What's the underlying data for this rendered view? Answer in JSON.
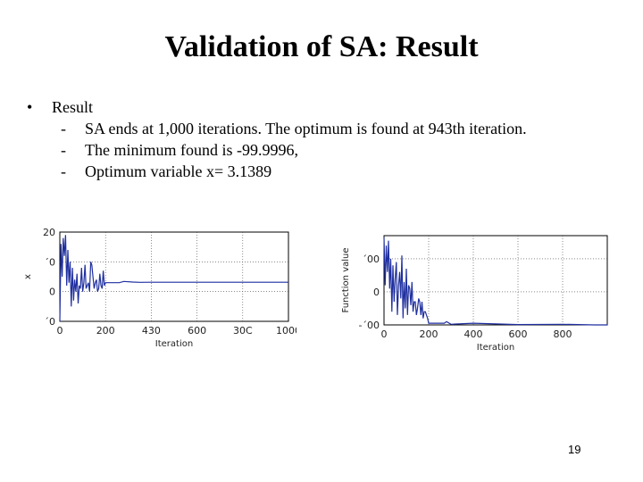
{
  "slide": {
    "title": "Validation of SA: Result",
    "bullet": "Result",
    "subitems": [
      "SA ends at 1,000 iterations. The optimum is found at 943th iteration.",
      "The minimum found is -99.9996,",
      "Optimum variable x= 3.1389"
    ],
    "page_number": "19"
  },
  "chart_data": [
    {
      "type": "line",
      "title": "",
      "xlabel": "Iteration",
      "ylabel": "x",
      "xlim": [
        0,
        1000
      ],
      "ylim": [
        -10,
        20
      ],
      "xticks": [
        "0",
        "200",
        "400",
        "600",
        "800",
        "1000"
      ],
      "yticks": [
        "20",
        "10",
        "0",
        "-10"
      ],
      "ytick_labels_rendered": [
        "20",
        "´0",
        "0",
        "´0"
      ],
      "xtick_labels_rendered": [
        "0",
        "200",
        "430",
        "600",
        "30C",
        "1000"
      ],
      "color": "#1f2fa0",
      "series": [
        {
          "x": [
            0,
            5,
            10,
            15,
            20,
            25,
            30,
            35,
            40,
            45,
            50,
            55,
            60,
            65,
            70,
            75,
            80,
            85,
            90,
            95,
            100,
            105,
            110,
            115,
            120,
            125,
            130,
            135,
            140,
            145,
            150,
            155,
            160,
            165,
            170,
            175,
            180,
            185,
            190,
            195,
            200,
            260,
            280,
            320,
            350,
            400,
            600,
            800,
            1000
          ],
          "y": [
            -10,
            16,
            5,
            18,
            12,
            19,
            2,
            14,
            3,
            10,
            -5,
            8,
            -3,
            4,
            0,
            6,
            -4,
            2,
            1,
            8,
            0,
            3,
            9,
            1,
            2,
            3,
            0,
            10,
            9,
            5,
            1,
            3,
            4,
            0,
            1,
            6,
            2,
            1,
            7,
            2,
            3,
            3,
            3.4,
            3.2,
            3.1,
            3.15,
            3.14,
            3.14,
            3.14
          ]
        }
      ]
    },
    {
      "type": "line",
      "title": "",
      "xlabel": "Iteration",
      "ylabel": "Function value",
      "xlim": [
        0,
        1000
      ],
      "ylim": [
        -100,
        170
      ],
      "xticks": [
        "0",
        "200",
        "400",
        "600",
        "800"
      ],
      "yticks": [
        "100",
        "0",
        "-100"
      ],
      "ytick_labels_rendered": [
        "´00",
        "0",
        "-´00"
      ],
      "color": "#1f2fa0",
      "series": [
        {
          "x": [
            0,
            5,
            10,
            15,
            20,
            25,
            30,
            35,
            40,
            45,
            50,
            55,
            60,
            65,
            70,
            75,
            80,
            85,
            90,
            95,
            100,
            105,
            110,
            115,
            120,
            125,
            130,
            135,
            140,
            145,
            150,
            155,
            160,
            165,
            170,
            175,
            180,
            185,
            190,
            195,
            200,
            270,
            280,
            300,
            400,
            600,
            800,
            943,
            1000
          ],
          "y": [
            165,
            20,
            140,
            60,
            155,
            10,
            100,
            -60,
            80,
            -30,
            40,
            90,
            -70,
            20,
            60,
            -20,
            110,
            -80,
            30,
            -50,
            70,
            -70,
            20,
            10,
            -40,
            30,
            -60,
            -30,
            -30,
            -70,
            -50,
            -20,
            -30,
            -70,
            -30,
            -80,
            -60,
            -60,
            -70,
            -80,
            -95,
            -95,
            -90,
            -98,
            -95,
            -99,
            -98,
            -99.9996,
            -99.9
          ]
        }
      ]
    }
  ]
}
